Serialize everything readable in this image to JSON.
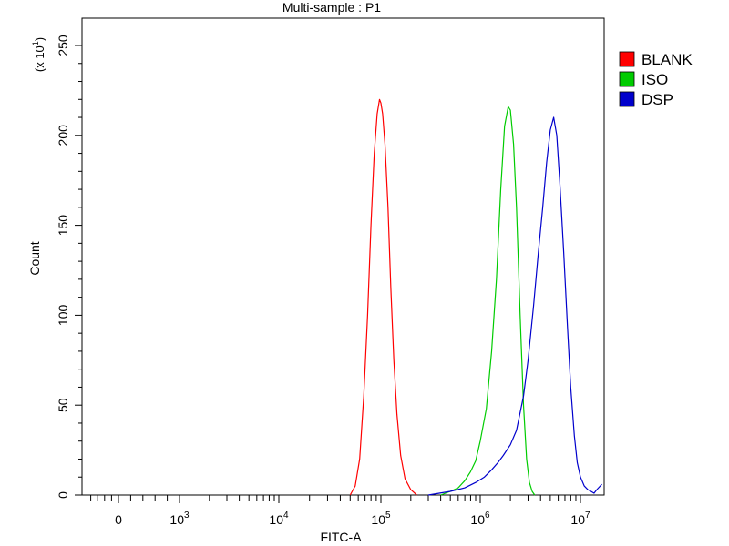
{
  "chart_data": {
    "type": "line",
    "title": "Multi-sample : P1",
    "xlabel": "FITC-A",
    "ylabel": "Count",
    "y_multiplier_label": "(x 10^1)",
    "x_scale": "log",
    "xlim": [
      -1000,
      18000000
    ],
    "ylim": [
      0,
      260
    ],
    "y_ticks": [
      0,
      50,
      100,
      150,
      200,
      250
    ],
    "x_ticks": [
      {
        "value": 0,
        "label": "0"
      },
      {
        "value": 1000,
        "label": "10^3"
      },
      {
        "value": 10000,
        "label": "10^4"
      },
      {
        "value": 100000,
        "label": "10^5"
      },
      {
        "value": 1000000,
        "label": "10^6"
      },
      {
        "value": 10000000,
        "label": "10^7"
      }
    ],
    "grid": false,
    "legend_position": "top-right",
    "series": [
      {
        "name": "BLANK",
        "color": "#ff0000",
        "x": [
          50000,
          56000,
          62000,
          68000,
          74000,
          80000,
          86000,
          92000,
          97000,
          100000,
          104000,
          110000,
          118000,
          126000,
          135000,
          145000,
          158000,
          175000,
          200000,
          230000
        ],
        "y": [
          0,
          5,
          20,
          55,
          100,
          150,
          190,
          212,
          220,
          218,
          212,
          195,
          160,
          115,
          75,
          45,
          22,
          9,
          3,
          0
        ]
      },
      {
        "name": "ISO",
        "color": "#00cc00",
        "x": [
          400000,
          500000,
          600000,
          700000,
          800000,
          900000,
          1000000,
          1150000,
          1300000,
          1450000,
          1600000,
          1750000,
          1900000,
          2000000,
          2150000,
          2300000,
          2500000,
          2700000,
          2900000,
          3100000,
          3300000,
          3500000
        ],
        "y": [
          0,
          2,
          4,
          8,
          13,
          19,
          30,
          48,
          80,
          120,
          170,
          205,
          216,
          214,
          195,
          160,
          100,
          50,
          20,
          7,
          2,
          0
        ]
      },
      {
        "name": "DSP",
        "color": "#0000cc",
        "x": [
          300000,
          500000,
          700000,
          900000,
          1100000,
          1300000,
          1500000,
          1700000,
          2000000,
          2300000,
          2700000,
          3000000,
          3400000,
          3800000,
          4200000,
          4600000,
          5000000,
          5400000,
          5800000,
          6200000,
          6800000,
          7400000,
          8000000,
          8700000,
          9300000,
          10000000,
          11000000,
          12000000,
          13000000,
          14000000,
          15000000,
          17000000
        ],
        "y": [
          0,
          2,
          4,
          7,
          10,
          14,
          18,
          22,
          28,
          36,
          55,
          75,
          105,
          135,
          160,
          185,
          203,
          210,
          200,
          175,
          135,
          95,
          60,
          33,
          18,
          10,
          5,
          3,
          2,
          1,
          3,
          6
        ]
      }
    ]
  }
}
